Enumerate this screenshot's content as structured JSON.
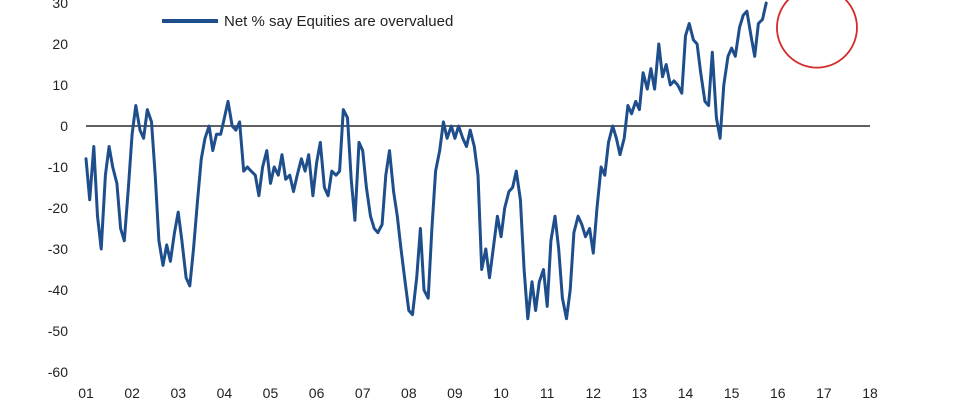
{
  "chart_data": {
    "type": "line",
    "title": "",
    "xlabel": "",
    "ylabel": "",
    "ylim": [
      -60,
      30
    ],
    "xlim": [
      2001,
      2018
    ],
    "y_ticks": [
      30,
      20,
      10,
      0,
      -10,
      -20,
      -30,
      -40,
      -50,
      -60
    ],
    "x_ticks": [
      {
        "value": 2001,
        "label": "01"
      },
      {
        "value": 2002,
        "label": "02"
      },
      {
        "value": 2003,
        "label": "03"
      },
      {
        "value": 2004,
        "label": "04"
      },
      {
        "value": 2005,
        "label": "05"
      },
      {
        "value": 2006,
        "label": "06"
      },
      {
        "value": 2007,
        "label": "07"
      },
      {
        "value": 2008,
        "label": "08"
      },
      {
        "value": 2009,
        "label": "09"
      },
      {
        "value": 2010,
        "label": "10"
      },
      {
        "value": 2011,
        "label": "11"
      },
      {
        "value": 2012,
        "label": "12"
      },
      {
        "value": 2013,
        "label": "13"
      },
      {
        "value": 2014,
        "label": "14"
      },
      {
        "value": 2015,
        "label": "15"
      },
      {
        "value": 2016,
        "label": "16"
      },
      {
        "value": 2017,
        "label": "17"
      },
      {
        "value": 2018,
        "label": "18"
      }
    ],
    "grid": false,
    "zero_line": true,
    "legend_position": "top-left",
    "highlight": {
      "shape": "circle",
      "color": "#d42a2a",
      "x": 2016.85,
      "y": 24
    },
    "series": [
      {
        "name": "Net % say Equities are overvalued",
        "color": "#1f4e8c",
        "points": [
          [
            2001.0,
            -8
          ],
          [
            2001.08,
            -18
          ],
          [
            2001.17,
            -5
          ],
          [
            2001.25,
            -22
          ],
          [
            2001.33,
            -30
          ],
          [
            2001.42,
            -12
          ],
          [
            2001.5,
            -5
          ],
          [
            2001.58,
            -10
          ],
          [
            2001.67,
            -14
          ],
          [
            2001.75,
            -25
          ],
          [
            2001.83,
            -28
          ],
          [
            2001.92,
            -15
          ],
          [
            2002.0,
            -2
          ],
          [
            2002.08,
            5
          ],
          [
            2002.17,
            -1
          ],
          [
            2002.25,
            -3
          ],
          [
            2002.33,
            4
          ],
          [
            2002.42,
            1
          ],
          [
            2002.5,
            -12
          ],
          [
            2002.58,
            -28
          ],
          [
            2002.67,
            -34
          ],
          [
            2002.75,
            -29
          ],
          [
            2002.83,
            -33
          ],
          [
            2002.92,
            -26
          ],
          [
            2003.0,
            -21
          ],
          [
            2003.08,
            -28
          ],
          [
            2003.17,
            -37
          ],
          [
            2003.25,
            -39
          ],
          [
            2003.33,
            -30
          ],
          [
            2003.42,
            -18
          ],
          [
            2003.5,
            -8
          ],
          [
            2003.58,
            -3
          ],
          [
            2003.67,
            0
          ],
          [
            2003.75,
            -6
          ],
          [
            2003.83,
            -2
          ],
          [
            2003.92,
            -2
          ],
          [
            2004.0,
            2
          ],
          [
            2004.08,
            6
          ],
          [
            2004.17,
            0
          ],
          [
            2004.25,
            -1
          ],
          [
            2004.33,
            1
          ],
          [
            2004.42,
            -11
          ],
          [
            2004.5,
            -10
          ],
          [
            2004.58,
            -11
          ],
          [
            2004.67,
            -12
          ],
          [
            2004.75,
            -17
          ],
          [
            2004.83,
            -10
          ],
          [
            2004.92,
            -6
          ],
          [
            2005.0,
            -14
          ],
          [
            2005.08,
            -10
          ],
          [
            2005.17,
            -12
          ],
          [
            2005.25,
            -7
          ],
          [
            2005.33,
            -13
          ],
          [
            2005.42,
            -12
          ],
          [
            2005.5,
            -16
          ],
          [
            2005.58,
            -12
          ],
          [
            2005.67,
            -8
          ],
          [
            2005.75,
            -11
          ],
          [
            2005.83,
            -7
          ],
          [
            2005.92,
            -17
          ],
          [
            2006.0,
            -9
          ],
          [
            2006.08,
            -4
          ],
          [
            2006.17,
            -15
          ],
          [
            2006.25,
            -17
          ],
          [
            2006.33,
            -11
          ],
          [
            2006.42,
            -12
          ],
          [
            2006.5,
            -11
          ],
          [
            2006.58,
            4
          ],
          [
            2006.67,
            2
          ],
          [
            2006.75,
            -13
          ],
          [
            2006.83,
            -23
          ],
          [
            2006.92,
            -4
          ],
          [
            2007.0,
            -6
          ],
          [
            2007.08,
            -15
          ],
          [
            2007.17,
            -22
          ],
          [
            2007.25,
            -25
          ],
          [
            2007.33,
            -26
          ],
          [
            2007.42,
            -24
          ],
          [
            2007.5,
            -12
          ],
          [
            2007.58,
            -6
          ],
          [
            2007.67,
            -16
          ],
          [
            2007.75,
            -22
          ],
          [
            2007.83,
            -30
          ],
          [
            2007.92,
            -38
          ],
          [
            2008.0,
            -45
          ],
          [
            2008.08,
            -46
          ],
          [
            2008.17,
            -37
          ],
          [
            2008.25,
            -25
          ],
          [
            2008.33,
            -40
          ],
          [
            2008.42,
            -42
          ],
          [
            2008.5,
            -25
          ],
          [
            2008.58,
            -11
          ],
          [
            2008.67,
            -6
          ],
          [
            2008.75,
            1
          ],
          [
            2008.83,
            -3
          ],
          [
            2008.92,
            0
          ],
          [
            2009.0,
            -3
          ],
          [
            2009.08,
            0
          ],
          [
            2009.17,
            -3
          ],
          [
            2009.25,
            -5
          ],
          [
            2009.33,
            -1
          ],
          [
            2009.42,
            -5
          ],
          [
            2009.5,
            -12
          ],
          [
            2009.58,
            -35
          ],
          [
            2009.67,
            -30
          ],
          [
            2009.75,
            -37
          ],
          [
            2009.83,
            -30
          ],
          [
            2009.92,
            -22
          ],
          [
            2010.0,
            -27
          ],
          [
            2010.08,
            -20
          ],
          [
            2010.17,
            -16
          ],
          [
            2010.25,
            -15
          ],
          [
            2010.33,
            -11
          ],
          [
            2010.42,
            -18
          ],
          [
            2010.5,
            -35
          ],
          [
            2010.58,
            -47
          ],
          [
            2010.67,
            -38
          ],
          [
            2010.75,
            -45
          ],
          [
            2010.83,
            -38
          ],
          [
            2010.92,
            -35
          ],
          [
            2011.0,
            -44
          ],
          [
            2011.08,
            -28
          ],
          [
            2011.17,
            -22
          ],
          [
            2011.25,
            -30
          ],
          [
            2011.33,
            -42
          ],
          [
            2011.42,
            -47
          ],
          [
            2011.5,
            -40
          ],
          [
            2011.58,
            -26
          ],
          [
            2011.67,
            -22
          ],
          [
            2011.75,
            -24
          ],
          [
            2011.83,
            -27
          ],
          [
            2011.92,
            -25
          ],
          [
            2012.0,
            -31
          ],
          [
            2012.08,
            -20
          ],
          [
            2012.17,
            -10
          ],
          [
            2012.25,
            -12
          ],
          [
            2012.33,
            -4
          ],
          [
            2012.42,
            0
          ],
          [
            2012.5,
            -3
          ],
          [
            2012.58,
            -7
          ],
          [
            2012.67,
            -3
          ],
          [
            2012.75,
            5
          ],
          [
            2012.83,
            3
          ],
          [
            2012.92,
            6
          ],
          [
            2013.0,
            4
          ],
          [
            2013.08,
            13
          ],
          [
            2013.17,
            9
          ],
          [
            2013.25,
            14
          ],
          [
            2013.33,
            9
          ],
          [
            2013.42,
            20
          ],
          [
            2013.5,
            12
          ],
          [
            2013.58,
            15
          ],
          [
            2013.67,
            10
          ],
          [
            2013.75,
            11
          ],
          [
            2013.83,
            10
          ],
          [
            2013.92,
            8
          ],
          [
            2014.0,
            22
          ],
          [
            2014.08,
            25
          ],
          [
            2014.17,
            21
          ],
          [
            2014.25,
            20
          ],
          [
            2014.33,
            13
          ],
          [
            2014.42,
            6
          ],
          [
            2014.5,
            5
          ],
          [
            2014.58,
            18
          ],
          [
            2014.67,
            2
          ],
          [
            2014.75,
            -3
          ],
          [
            2014.83,
            10
          ],
          [
            2014.92,
            17
          ],
          [
            2015.0,
            19
          ],
          [
            2015.08,
            17
          ],
          [
            2015.17,
            24
          ],
          [
            2015.25,
            27
          ],
          [
            2015.33,
            28
          ],
          [
            2015.42,
            22
          ],
          [
            2015.5,
            17
          ],
          [
            2015.58,
            25
          ],
          [
            2015.67,
            26
          ],
          [
            2015.75,
            30
          ]
        ]
      }
    ]
  }
}
